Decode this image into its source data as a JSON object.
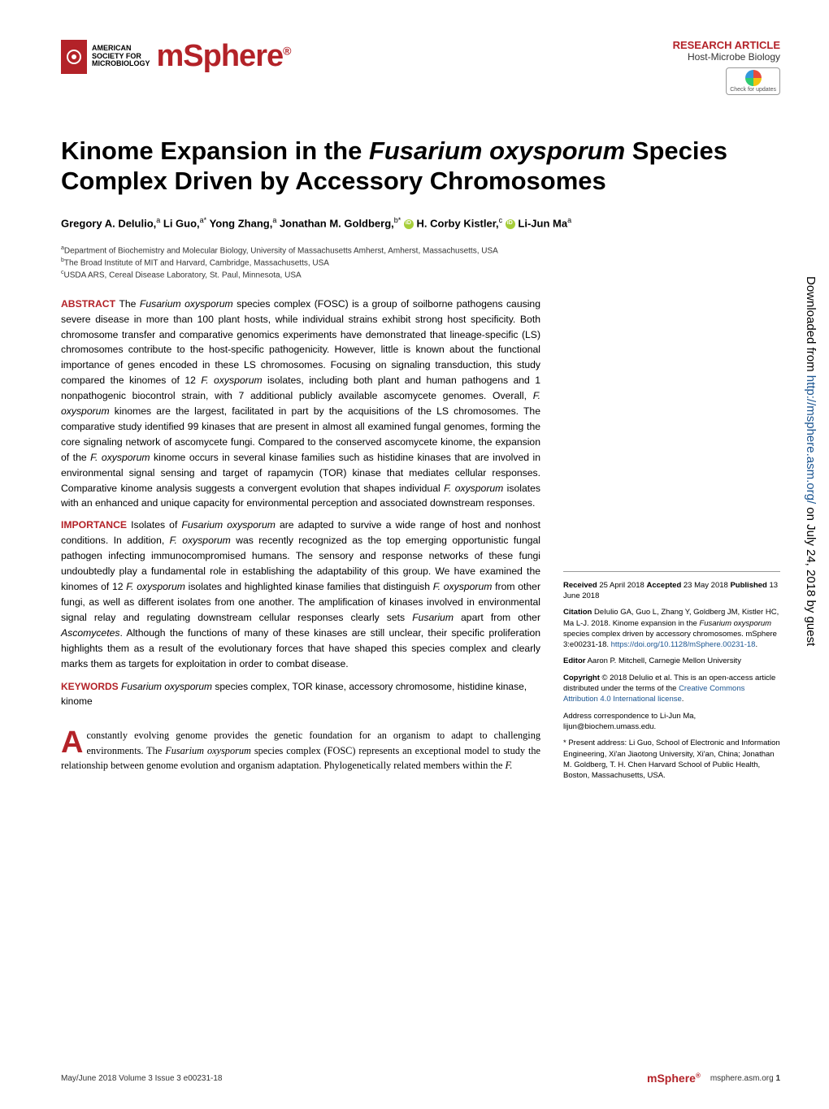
{
  "header": {
    "society_line1": "AMERICAN",
    "society_line2": "SOCIETY FOR",
    "society_line3": "MICROBIOLOGY",
    "journal": "mSphere",
    "article_type": "RESEARCH ARTICLE",
    "section": "Host-Microbe Biology",
    "crossmark": "Check for updates"
  },
  "title": "Kinome Expansion in the Fusarium oxysporum Species Complex Driven by Accessory Chromosomes",
  "authors_html": "Gregory A. DeIulio,<sup>a</sup> Li Guo,<sup>a*</sup> Yong Zhang,<sup>a</sup> Jonathan M. Goldberg,<sup>b*</sup> <span class='orcid'></span> H. Corby Kistler,<sup>c</sup> <span class='orcid'></span> Li-Jun Ma<sup>a</sup>",
  "affiliations": {
    "a": "Department of Biochemistry and Molecular Biology, University of Massachusetts Amherst, Amherst, Massachusetts, USA",
    "b": "The Broad Institute of MIT and Harvard, Cambridge, Massachusetts, USA",
    "c": "USDA ARS, Cereal Disease Laboratory, St. Paul, Minnesota, USA"
  },
  "abstract": "The Fusarium oxysporum species complex (FOSC) is a group of soilborne pathogens causing severe disease in more than 100 plant hosts, while individual strains exhibit strong host specificity. Both chromosome transfer and comparative genomics experiments have demonstrated that lineage-specific (LS) chromosomes contribute to the host-specific pathogenicity. However, little is known about the functional importance of genes encoded in these LS chromosomes. Focusing on signaling transduction, this study compared the kinomes of 12 F. oxysporum isolates, including both plant and human pathogens and 1 nonpathogenic biocontrol strain, with 7 additional publicly available ascomycete genomes. Overall, F. oxysporum kinomes are the largest, facilitated in part by the acquisitions of the LS chromosomes. The comparative study identified 99 kinases that are present in almost all examined fungal genomes, forming the core signaling network of ascomycete fungi. Compared to the conserved ascomycete kinome, the expansion of the F. oxysporum kinome occurs in several kinase families such as histidine kinases that are involved in environmental signal sensing and target of rapamycin (TOR) kinase that mediates cellular responses. Comparative kinome analysis suggests a convergent evolution that shapes individual F. oxysporum isolates with an enhanced and unique capacity for environmental perception and associated downstream responses.",
  "importance": "Isolates of Fusarium oxysporum are adapted to survive a wide range of host and nonhost conditions. In addition, F. oxysporum was recently recognized as the top emerging opportunistic fungal pathogen infecting immunocompromised humans. The sensory and response networks of these fungi undoubtedly play a fundamental role in establishing the adaptability of this group. We have examined the kinomes of 12 F. oxysporum isolates and highlighted kinase families that distinguish F. oxysporum from other fungi, as well as different isolates from one another. The amplification of kinases involved in environmental signal relay and regulating downstream cellular responses clearly sets Fusarium apart from other Ascomycetes. Although the functions of many of these kinases are still unclear, their specific proliferation highlights them as a result of the evolutionary forces that have shaped this species complex and clearly marks them as targets for exploitation in order to combat disease.",
  "keywords": "Fusarium oxysporum species complex, TOR kinase, accessory chromosome, histidine kinase, kinome",
  "intro_first": "A",
  "intro_rest": "constantly evolving genome provides the genetic foundation for an organism to adapt to challenging environments. The Fusarium oxysporum species complex (FOSC) represents an exceptional model to study the relationship between genome evolution and organism adaptation. Phylogenetically related members within the F.",
  "sidebar": {
    "received": "Received 25 April 2018 Accepted 23 May 2018 Published 13 June 2018",
    "citation": "Citation DeIulio GA, Guo L, Zhang Y, Goldberg JM, Kistler HC, Ma L-J. 2018. Kinome expansion in the Fusarium oxysporum species complex driven by accessory chromosomes. mSphere 3:e00231-18.",
    "doi": "https://doi.org/10.1128/mSphere.00231-18",
    "editor": "Editor Aaron P. Mitchell, Carnegie Mellon University",
    "copyright": "Copyright © 2018 DeIulio et al. This is an open-access article distributed under the terms of the",
    "license": "Creative Commons Attribution 4.0 International license",
    "correspondence": "Address correspondence to Li-Jun Ma, lijun@biochem.umass.edu.",
    "present": "* Present address: Li Guo, School of Electronic and Information Engineering, Xi'an Jiaotong University, Xi'an, China; Jonathan M. Goldberg, T. H. Chen Harvard School of Public Health, Boston, Massachusetts, USA."
  },
  "footer": {
    "left": "May/June 2018   Volume 3   Issue 3   e00231-18",
    "logo": "mSphere",
    "url": "msphere.asm.org",
    "page": "1"
  },
  "watermark": {
    "prefix": "Downloaded from ",
    "url": "http://msphere.asm.org/",
    "suffix": " on July 24, 2018 by guest"
  },
  "colors": {
    "accent": "#b32228",
    "link": "#1a5490",
    "text": "#000000",
    "orcid": "#a6ce39"
  }
}
